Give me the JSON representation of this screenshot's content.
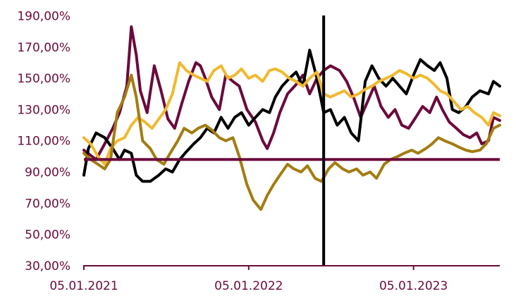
{
  "chart_data": {
    "type": "line",
    "title": "",
    "xlabel": "",
    "ylabel": "",
    "x_tick_labels": [
      "05.01.2021",
      "05.01.2022",
      "05.01.2023"
    ],
    "x_ticks": [
      "2021-01-05",
      "2022-01-05",
      "2023-01-05"
    ],
    "xlim": [
      "2021-01-05",
      "2023-07-15"
    ],
    "y_tick_labels": [
      "30,00%",
      "50,00%",
      "70,00%",
      "90,00%",
      "110,00%",
      "130,00%",
      "150,00%",
      "170,00%",
      "190,00%"
    ],
    "ylim": [
      30,
      192
    ],
    "grid": false,
    "legend": "none",
    "reference_line": {
      "y": 98,
      "color": "#6b0a3c"
    },
    "vertical_marker": {
      "x": "2022-06-20",
      "color": "#000000"
    },
    "axis_color": "#6b0a3c",
    "series": [
      {
        "color": "#6b0a3c",
        "points": [
          [
            "2021-01-05",
            104
          ],
          [
            "2021-02-01",
            98
          ],
          [
            "2021-02-20",
            108
          ],
          [
            "2021-03-10",
            118
          ],
          [
            "2021-03-25",
            128
          ],
          [
            "2021-04-10",
            145
          ],
          [
            "2021-04-20",
            183
          ],
          [
            "2021-05-01",
            165
          ],
          [
            "2021-05-10",
            142
          ],
          [
            "2021-05-25",
            128
          ],
          [
            "2021-06-10",
            158
          ],
          [
            "2021-06-25",
            142
          ],
          [
            "2021-07-10",
            124
          ],
          [
            "2021-07-25",
            118
          ],
          [
            "2021-08-10",
            134
          ],
          [
            "2021-08-25",
            148
          ],
          [
            "2021-09-10",
            160
          ],
          [
            "2021-09-20",
            158
          ],
          [
            "2021-10-01",
            150
          ],
          [
            "2021-10-15",
            138
          ],
          [
            "2021-11-01",
            130
          ],
          [
            "2021-11-15",
            152
          ],
          [
            "2021-12-01",
            148
          ],
          [
            "2021-12-15",
            145
          ],
          [
            "2022-01-01",
            130
          ],
          [
            "2022-01-20",
            122
          ],
          [
            "2022-02-05",
            110
          ],
          [
            "2022-02-15",
            105
          ],
          [
            "2022-03-01",
            115
          ],
          [
            "2022-03-15",
            128
          ],
          [
            "2022-04-01",
            140
          ],
          [
            "2022-04-20",
            146
          ],
          [
            "2022-05-05",
            152
          ],
          [
            "2022-05-20",
            140
          ],
          [
            "2022-06-05",
            150
          ],
          [
            "2022-06-20",
            155
          ],
          [
            "2022-07-05",
            158
          ],
          [
            "2022-07-25",
            155
          ],
          [
            "2022-08-10",
            148
          ],
          [
            "2022-08-25",
            138
          ],
          [
            "2022-09-10",
            125
          ],
          [
            "2022-09-25",
            135
          ],
          [
            "2022-10-10",
            145
          ],
          [
            "2022-10-25",
            132
          ],
          [
            "2022-11-10",
            125
          ],
          [
            "2022-11-25",
            130
          ],
          [
            "2022-12-10",
            120
          ],
          [
            "2022-12-25",
            118
          ],
          [
            "2023-01-10",
            125
          ],
          [
            "2023-01-25",
            132
          ],
          [
            "2023-02-10",
            128
          ],
          [
            "2023-02-25",
            138
          ],
          [
            "2023-03-10",
            130
          ],
          [
            "2023-03-25",
            122
          ],
          [
            "2023-04-10",
            118
          ],
          [
            "2023-04-25",
            114
          ],
          [
            "2023-05-10",
            112
          ],
          [
            "2023-05-25",
            115
          ],
          [
            "2023-06-05",
            108
          ],
          [
            "2023-06-20",
            110
          ],
          [
            "2023-07-01",
            125
          ],
          [
            "2023-07-15",
            123
          ]
        ]
      },
      {
        "color": "#000000",
        "points": [
          [
            "2021-01-05",
            88
          ],
          [
            "2021-01-15",
            105
          ],
          [
            "2021-02-01",
            115
          ],
          [
            "2021-02-20",
            112
          ],
          [
            "2021-03-10",
            105
          ],
          [
            "2021-03-25",
            98
          ],
          [
            "2021-04-05",
            104
          ],
          [
            "2021-04-20",
            102
          ],
          [
            "2021-05-01",
            88
          ],
          [
            "2021-05-15",
            84
          ],
          [
            "2021-06-01",
            84
          ],
          [
            "2021-06-20",
            88
          ],
          [
            "2021-07-05",
            92
          ],
          [
            "2021-07-20",
            90
          ],
          [
            "2021-08-05",
            98
          ],
          [
            "2021-08-20",
            103
          ],
          [
            "2021-09-05",
            108
          ],
          [
            "2021-09-20",
            112
          ],
          [
            "2021-10-05",
            118
          ],
          [
            "2021-10-20",
            115
          ],
          [
            "2021-11-05",
            125
          ],
          [
            "2021-11-20",
            118
          ],
          [
            "2021-12-05",
            125
          ],
          [
            "2021-12-20",
            128
          ],
          [
            "2022-01-05",
            120
          ],
          [
            "2022-01-20",
            125
          ],
          [
            "2022-02-05",
            130
          ],
          [
            "2022-02-20",
            128
          ],
          [
            "2022-03-05",
            138
          ],
          [
            "2022-03-20",
            145
          ],
          [
            "2022-04-05",
            150
          ],
          [
            "2022-04-20",
            154
          ],
          [
            "2022-05-05",
            145
          ],
          [
            "2022-05-20",
            168
          ],
          [
            "2022-06-05",
            150
          ],
          [
            "2022-06-20",
            128
          ],
          [
            "2022-07-05",
            130
          ],
          [
            "2022-07-20",
            120
          ],
          [
            "2022-08-05",
            125
          ],
          [
            "2022-08-20",
            115
          ],
          [
            "2022-09-05",
            110
          ],
          [
            "2022-09-20",
            148
          ],
          [
            "2022-10-05",
            158
          ],
          [
            "2022-10-20",
            150
          ],
          [
            "2022-11-05",
            145
          ],
          [
            "2022-11-20",
            150
          ],
          [
            "2022-12-05",
            145
          ],
          [
            "2022-12-20",
            140
          ],
          [
            "2023-01-05",
            152
          ],
          [
            "2023-01-20",
            162
          ],
          [
            "2023-02-05",
            158
          ],
          [
            "2023-02-20",
            155
          ],
          [
            "2023-03-05",
            160
          ],
          [
            "2023-03-20",
            150
          ],
          [
            "2023-04-01",
            130
          ],
          [
            "2023-04-15",
            128
          ],
          [
            "2023-05-01",
            132
          ],
          [
            "2023-05-15",
            138
          ],
          [
            "2023-06-01",
            142
          ],
          [
            "2023-06-20",
            140
          ],
          [
            "2023-07-01",
            148
          ],
          [
            "2023-07-15",
            145
          ]
        ]
      },
      {
        "color": "#f0b92e",
        "points": [
          [
            "2021-01-05",
            112
          ],
          [
            "2021-01-20",
            108
          ],
          [
            "2021-02-05",
            100
          ],
          [
            "2021-02-20",
            95
          ],
          [
            "2021-03-05",
            105
          ],
          [
            "2021-03-20",
            110
          ],
          [
            "2021-04-05",
            112
          ],
          [
            "2021-04-20",
            120
          ],
          [
            "2021-05-05",
            125
          ],
          [
            "2021-05-20",
            122
          ],
          [
            "2021-06-05",
            118
          ],
          [
            "2021-06-20",
            124
          ],
          [
            "2021-07-05",
            130
          ],
          [
            "2021-07-20",
            140
          ],
          [
            "2021-08-05",
            160
          ],
          [
            "2021-08-20",
            155
          ],
          [
            "2021-09-05",
            152
          ],
          [
            "2021-09-20",
            150
          ],
          [
            "2021-10-05",
            148
          ],
          [
            "2021-10-20",
            155
          ],
          [
            "2021-11-05",
            158
          ],
          [
            "2021-11-20",
            150
          ],
          [
            "2021-12-05",
            152
          ],
          [
            "2021-12-20",
            156
          ],
          [
            "2022-01-05",
            150
          ],
          [
            "2022-01-20",
            152
          ],
          [
            "2022-02-05",
            148
          ],
          [
            "2022-02-20",
            155
          ],
          [
            "2022-03-05",
            156
          ],
          [
            "2022-03-20",
            154
          ],
          [
            "2022-04-05",
            150
          ],
          [
            "2022-04-20",
            148
          ],
          [
            "2022-05-05",
            145
          ],
          [
            "2022-05-20",
            150
          ],
          [
            "2022-06-05",
            154
          ],
          [
            "2022-06-20",
            140
          ],
          [
            "2022-07-05",
            138
          ],
          [
            "2022-07-20",
            140
          ],
          [
            "2022-08-05",
            142
          ],
          [
            "2022-08-20",
            138
          ],
          [
            "2022-09-05",
            140
          ],
          [
            "2022-09-20",
            143
          ],
          [
            "2022-10-05",
            145
          ],
          [
            "2022-10-20",
            148
          ],
          [
            "2022-11-05",
            150
          ],
          [
            "2022-11-20",
            152
          ],
          [
            "2022-12-05",
            155
          ],
          [
            "2022-12-20",
            153
          ],
          [
            "2023-01-05",
            150
          ],
          [
            "2023-01-20",
            152
          ],
          [
            "2023-02-05",
            150
          ],
          [
            "2023-02-20",
            146
          ],
          [
            "2023-03-05",
            142
          ],
          [
            "2023-03-20",
            140
          ],
          [
            "2023-04-05",
            135
          ],
          [
            "2023-04-20",
            130
          ],
          [
            "2023-05-05",
            132
          ],
          [
            "2023-05-20",
            128
          ],
          [
            "2023-06-05",
            125
          ],
          [
            "2023-06-20",
            120
          ],
          [
            "2023-07-01",
            128
          ],
          [
            "2023-07-15",
            126
          ]
        ]
      },
      {
        "color": "#a37c11",
        "points": [
          [
            "2021-01-05",
            102
          ],
          [
            "2021-01-20",
            98
          ],
          [
            "2021-02-05",
            95
          ],
          [
            "2021-02-20",
            92
          ],
          [
            "2021-03-05",
            98
          ],
          [
            "2021-03-20",
            128
          ],
          [
            "2021-04-05",
            138
          ],
          [
            "2021-04-20",
            152
          ],
          [
            "2021-05-01",
            138
          ],
          [
            "2021-05-15",
            110
          ],
          [
            "2021-06-01",
            105
          ],
          [
            "2021-06-15",
            98
          ],
          [
            "2021-07-01",
            95
          ],
          [
            "2021-07-15",
            102
          ],
          [
            "2021-08-01",
            110
          ],
          [
            "2021-08-15",
            118
          ],
          [
            "2021-09-01",
            115
          ],
          [
            "2021-09-15",
            118
          ],
          [
            "2021-10-01",
            120
          ],
          [
            "2021-10-15",
            117
          ],
          [
            "2021-11-01",
            112
          ],
          [
            "2021-11-15",
            110
          ],
          [
            "2021-12-01",
            112
          ],
          [
            "2021-12-15",
            100
          ],
          [
            "2022-01-01",
            82
          ],
          [
            "2022-01-15",
            72
          ],
          [
            "2022-02-01",
            66
          ],
          [
            "2022-02-15",
            75
          ],
          [
            "2022-03-01",
            82
          ],
          [
            "2022-03-15",
            88
          ],
          [
            "2022-04-01",
            95
          ],
          [
            "2022-04-15",
            92
          ],
          [
            "2022-05-01",
            90
          ],
          [
            "2022-05-15",
            94
          ],
          [
            "2022-06-01",
            86
          ],
          [
            "2022-06-15",
            84
          ],
          [
            "2022-07-01",
            92
          ],
          [
            "2022-07-15",
            96
          ],
          [
            "2022-08-01",
            92
          ],
          [
            "2022-08-15",
            90
          ],
          [
            "2022-09-01",
            92
          ],
          [
            "2022-09-15",
            88
          ],
          [
            "2022-10-01",
            90
          ],
          [
            "2022-10-15",
            86
          ],
          [
            "2022-11-01",
            95
          ],
          [
            "2022-11-15",
            98
          ],
          [
            "2022-12-01",
            100
          ],
          [
            "2022-12-15",
            102
          ],
          [
            "2023-01-01",
            104
          ],
          [
            "2023-01-15",
            102
          ],
          [
            "2023-02-01",
            105
          ],
          [
            "2023-02-15",
            108
          ],
          [
            "2023-03-01",
            112
          ],
          [
            "2023-03-15",
            110
          ],
          [
            "2023-04-01",
            108
          ],
          [
            "2023-04-15",
            106
          ],
          [
            "2023-05-01",
            104
          ],
          [
            "2023-05-15",
            103
          ],
          [
            "2023-06-01",
            104
          ],
          [
            "2023-06-15",
            108
          ],
          [
            "2023-07-01",
            118
          ],
          [
            "2023-07-15",
            120
          ]
        ]
      }
    ]
  }
}
